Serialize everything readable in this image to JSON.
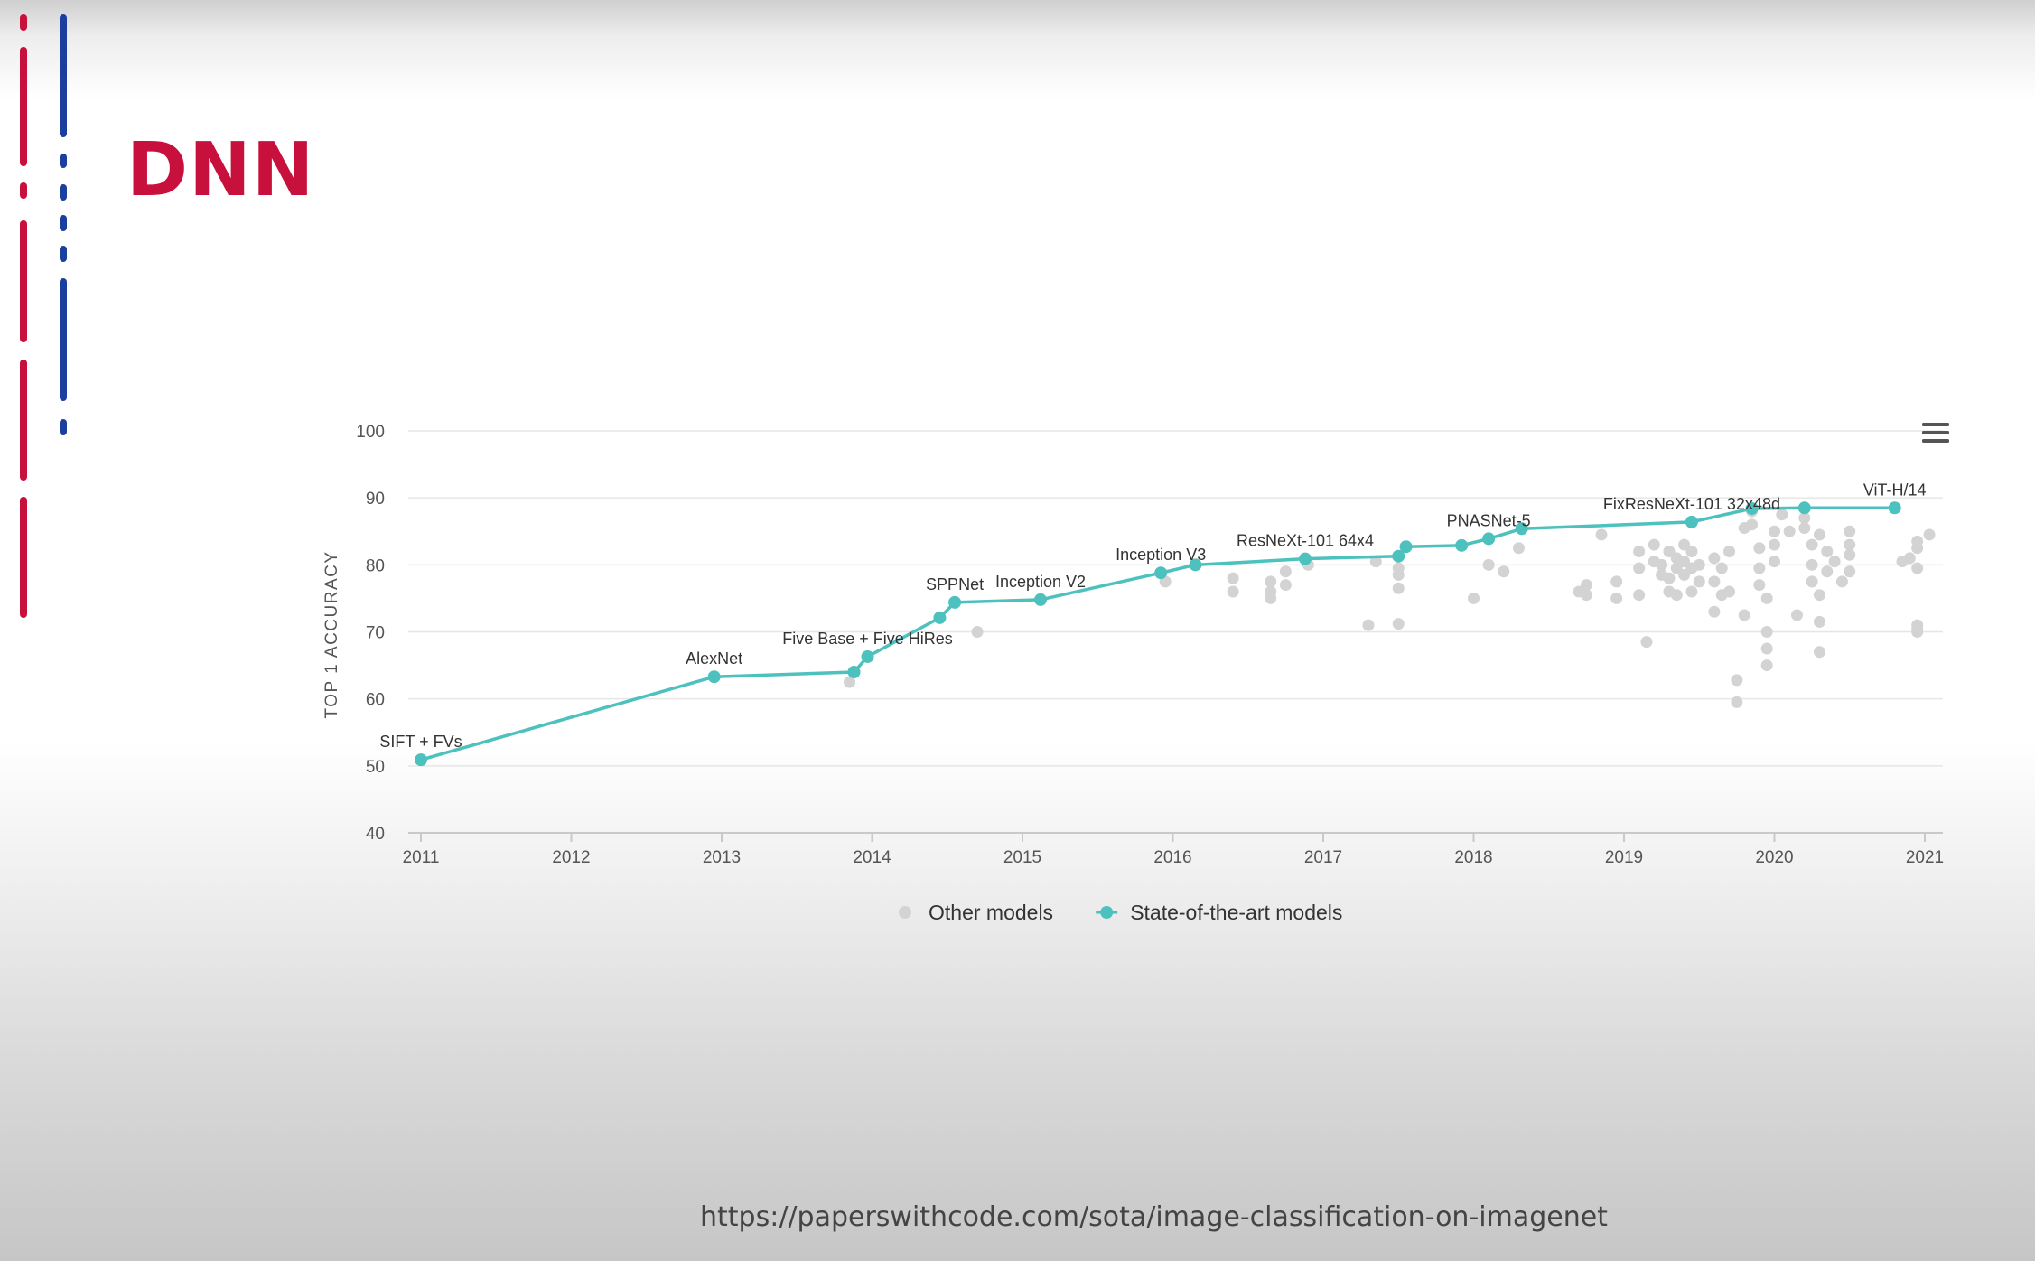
{
  "slide": {
    "title": "DNN",
    "source_url": "https://paperswithcode.com/sota/image-classification-on-imagenet"
  },
  "colors": {
    "title": "#c8103c",
    "bar_red": "#c8103c",
    "bar_blue": "#1a3f9c",
    "sota": "#4dc1bd",
    "other": "#d3d3d3",
    "grid": "#e6e6e6"
  },
  "menu_icon": "hamburger-menu-icon",
  "chart_data": {
    "type": "scatter",
    "xlabel": "",
    "ylabel": "TOP 1 ACCURACY",
    "xlim": [
      2011,
      2021
    ],
    "ylim": [
      40,
      100
    ],
    "x_ticks": [
      2011,
      2012,
      2013,
      2014,
      2015,
      2016,
      2017,
      2018,
      2019,
      2020,
      2021
    ],
    "y_ticks": [
      40,
      50,
      60,
      70,
      80,
      90,
      100
    ],
    "grid": true,
    "legend_position": "bottom-center",
    "series": [
      {
        "name": "Other models",
        "color": "#d3d3d3",
        "points": [
          [
            2013.85,
            62.5
          ],
          [
            2014.7,
            70
          ],
          [
            2015.95,
            77.5
          ],
          [
            2016.4,
            78
          ],
          [
            2016.4,
            76
          ],
          [
            2016.65,
            77.5
          ],
          [
            2016.65,
            76
          ],
          [
            2016.65,
            75
          ],
          [
            2016.75,
            79
          ],
          [
            2016.75,
            77
          ],
          [
            2016.9,
            80
          ],
          [
            2017.3,
            71
          ],
          [
            2017.35,
            80.5
          ],
          [
            2017.5,
            79.5
          ],
          [
            2017.5,
            78.5
          ],
          [
            2017.5,
            76.5
          ],
          [
            2017.5,
            71.2
          ],
          [
            2018.0,
            75
          ],
          [
            2018.1,
            80
          ],
          [
            2018.2,
            79
          ],
          [
            2018.3,
            82.5
          ],
          [
            2018.7,
            76
          ],
          [
            2018.75,
            75.5
          ],
          [
            2018.75,
            77
          ],
          [
            2018.85,
            84.5
          ],
          [
            2018.95,
            75
          ],
          [
            2018.95,
            77.5
          ],
          [
            2019.1,
            82
          ],
          [
            2019.1,
            79.5
          ],
          [
            2019.1,
            75.5
          ],
          [
            2019.15,
            68.5
          ],
          [
            2019.2,
            83
          ],
          [
            2019.2,
            80.5
          ],
          [
            2019.25,
            78.5
          ],
          [
            2019.25,
            80
          ],
          [
            2019.3,
            76
          ],
          [
            2019.3,
            82
          ],
          [
            2019.3,
            78
          ],
          [
            2019.35,
            79.5
          ],
          [
            2019.35,
            81
          ],
          [
            2019.35,
            75.5
          ],
          [
            2019.4,
            80.5
          ],
          [
            2019.4,
            83
          ],
          [
            2019.4,
            78.5
          ],
          [
            2019.45,
            79.5
          ],
          [
            2019.45,
            82
          ],
          [
            2019.45,
            76
          ],
          [
            2019.5,
            80
          ],
          [
            2019.5,
            77.5
          ],
          [
            2019.6,
            81
          ],
          [
            2019.6,
            73
          ],
          [
            2019.6,
            77.5
          ],
          [
            2019.65,
            79.5
          ],
          [
            2019.65,
            75.5
          ],
          [
            2019.7,
            82
          ],
          [
            2019.7,
            76
          ],
          [
            2019.75,
            62.8
          ],
          [
            2019.75,
            59.5
          ],
          [
            2019.8,
            85.5
          ],
          [
            2019.8,
            72.5
          ],
          [
            2019.85,
            88
          ],
          [
            2019.85,
            86
          ],
          [
            2019.9,
            82.5
          ],
          [
            2019.9,
            79.5
          ],
          [
            2019.9,
            77
          ],
          [
            2019.95,
            75
          ],
          [
            2019.95,
            70
          ],
          [
            2019.95,
            67.5
          ],
          [
            2019.95,
            65
          ],
          [
            2020.0,
            85
          ],
          [
            2020.0,
            83
          ],
          [
            2020.0,
            80.5
          ],
          [
            2020.05,
            87.5
          ],
          [
            2020.1,
            85
          ],
          [
            2020.15,
            72.5
          ],
          [
            2020.2,
            87
          ],
          [
            2020.2,
            85.5
          ],
          [
            2020.25,
            83
          ],
          [
            2020.25,
            80
          ],
          [
            2020.25,
            77.5
          ],
          [
            2020.3,
            75.5
          ],
          [
            2020.3,
            71.5
          ],
          [
            2020.3,
            67
          ],
          [
            2020.3,
            84.5
          ],
          [
            2020.35,
            82
          ],
          [
            2020.35,
            79
          ],
          [
            2020.4,
            80.5
          ],
          [
            2020.45,
            77.5
          ],
          [
            2020.5,
            85
          ],
          [
            2020.5,
            83
          ],
          [
            2020.5,
            81.5
          ],
          [
            2020.5,
            79
          ],
          [
            2020.85,
            80.5
          ],
          [
            2020.9,
            81
          ],
          [
            2020.95,
            83.5
          ],
          [
            2020.95,
            82.5
          ],
          [
            2020.95,
            79.5
          ],
          [
            2020.95,
            71
          ],
          [
            2020.95,
            70.5
          ],
          [
            2020.95,
            70
          ],
          [
            2021.03,
            84.5
          ]
        ]
      },
      {
        "name": "State-of-the-art models",
        "color": "#4dc1bd",
        "points": [
          {
            "x": 2011.0,
            "y": 50.9,
            "label": "SIFT + FVs"
          },
          {
            "x": 2012.95,
            "y": 63.3,
            "label": "AlexNet"
          },
          {
            "x": 2013.88,
            "y": 64.0,
            "label": ""
          },
          {
            "x": 2013.97,
            "y": 66.3,
            "label": "Five Base + Five HiRes"
          },
          {
            "x": 2014.45,
            "y": 72.1,
            "label": ""
          },
          {
            "x": 2014.55,
            "y": 74.4,
            "label": "SPPNet"
          },
          {
            "x": 2015.12,
            "y": 74.8,
            "label": "Inception V2"
          },
          {
            "x": 2015.92,
            "y": 78.8,
            "label": "Inception V3"
          },
          {
            "x": 2016.15,
            "y": 80.0,
            "label": ""
          },
          {
            "x": 2016.88,
            "y": 80.9,
            "label": "ResNeXt-101 64x4"
          },
          {
            "x": 2017.5,
            "y": 81.3,
            "label": ""
          },
          {
            "x": 2017.55,
            "y": 82.7,
            "label": ""
          },
          {
            "x": 2017.92,
            "y": 82.9,
            "label": ""
          },
          {
            "x": 2018.1,
            "y": 83.9,
            "label": "PNASNet-5"
          },
          {
            "x": 2018.32,
            "y": 85.4,
            "label": ""
          },
          {
            "x": 2019.45,
            "y": 86.4,
            "label": "FixResNeXt-101 32x48d"
          },
          {
            "x": 2019.85,
            "y": 88.4,
            "label": ""
          },
          {
            "x": 2020.2,
            "y": 88.5,
            "label": ""
          },
          {
            "x": 2020.8,
            "y": 88.5,
            "label": "ViT-H/14"
          }
        ]
      }
    ]
  }
}
